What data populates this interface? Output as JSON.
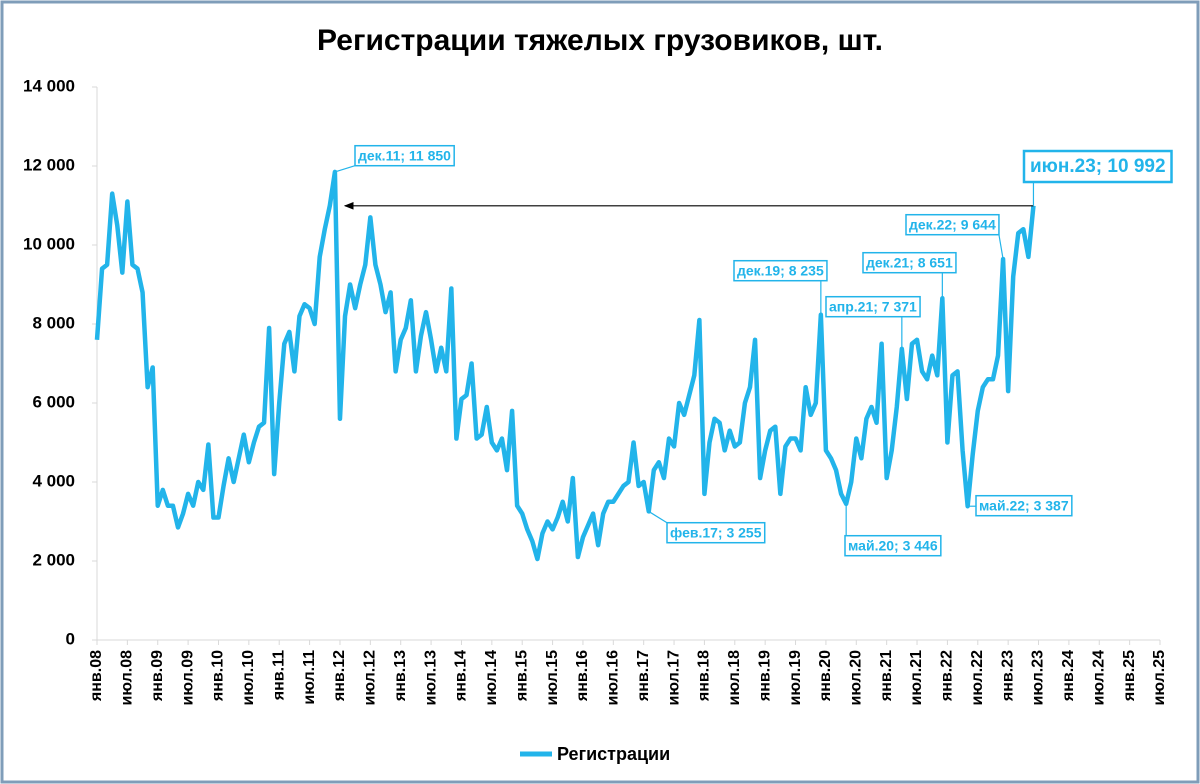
{
  "chart_data": {
    "type": "line",
    "title": "Регистрации тяжелых грузовиков, шт.",
    "categories": [
      "янв.08",
      null,
      null,
      null,
      null,
      null,
      "июл.08",
      null,
      null,
      null,
      null,
      null,
      "янв.09",
      null,
      null,
      null,
      null,
      null,
      "июл.09",
      null,
      null,
      null,
      null,
      null,
      "янв.10",
      null,
      null,
      null,
      null,
      null,
      "июл.10",
      null,
      null,
      null,
      null,
      null,
      "янв.11",
      null,
      null,
      null,
      null,
      null,
      "июл.11",
      null,
      null,
      null,
      null,
      null,
      "янв.12",
      null,
      null,
      null,
      null,
      null,
      "июл.12",
      null,
      null,
      null,
      null,
      null,
      "янв.13",
      null,
      null,
      null,
      null,
      null,
      "июл.13",
      null,
      null,
      null,
      null,
      null,
      "янв.14",
      null,
      null,
      null,
      null,
      null,
      "июл.14",
      null,
      null,
      null,
      null,
      null,
      "янв.15",
      null,
      null,
      null,
      null,
      null,
      "июл.15",
      null,
      null,
      null,
      null,
      null,
      "янв.16",
      null,
      null,
      null,
      null,
      null,
      "июл.16",
      null,
      null,
      null,
      null,
      null,
      "янв.17",
      null,
      null,
      null,
      null,
      null,
      "июл.17",
      null,
      null,
      null,
      null,
      null,
      "янв.18",
      null,
      null,
      null,
      null,
      null,
      "июл.18",
      null,
      null,
      null,
      null,
      null,
      "янв.19",
      null,
      null,
      null,
      null,
      null,
      "июл.19",
      null,
      null,
      null,
      null,
      null,
      "янв.20",
      null,
      null,
      null,
      null,
      null,
      "июл.20",
      null,
      null,
      null,
      null,
      null,
      "янв.21",
      null,
      null,
      null,
      null,
      null,
      "июл.21",
      null,
      null,
      null,
      null,
      null,
      "янв.22",
      null,
      null,
      null,
      null,
      null,
      "июл.22",
      null,
      null,
      null,
      null,
      null,
      "янв.23",
      null,
      null,
      null,
      null,
      null,
      "июл.23",
      null,
      null,
      null,
      null,
      null,
      "янв.24",
      null,
      null,
      null,
      null,
      null,
      "июл.24",
      null,
      null,
      null,
      null,
      null,
      "янв.25",
      null,
      null,
      null,
      null,
      null,
      "июл.25"
    ],
    "series": [
      {
        "name": "Регистрации",
        "color": "#22b4ea",
        "values": [
          7600,
          9400,
          9500,
          11300,
          10500,
          9300,
          11100,
          9500,
          9400,
          8800,
          6400,
          6900,
          3400,
          3800,
          3400,
          3400,
          2850,
          3200,
          3700,
          3400,
          4000,
          3800,
          4950,
          3100,
          3100,
          3900,
          4600,
          4000,
          4600,
          5200,
          4500,
          5000,
          5400,
          5500,
          7900,
          4200,
          6000,
          7500,
          7800,
          6800,
          8200,
          8500,
          8400,
          8000,
          9700,
          10400,
          11000,
          11850,
          5600,
          8200,
          9000,
          8400,
          9000,
          9500,
          10700,
          9500,
          9000,
          8300,
          8800,
          6800,
          7600,
          7900,
          8600,
          6800,
          7700,
          8300,
          7600,
          6800,
          7400,
          6800,
          8900,
          5100,
          6100,
          6200,
          7000,
          5100,
          5200,
          5900,
          5000,
          4800,
          5100,
          4300,
          5800,
          3400,
          3200,
          2800,
          2500,
          2050,
          2700,
          3000,
          2800,
          3100,
          3500,
          3000,
          4100,
          2100,
          2600,
          2900,
          3200,
          2400,
          3200,
          3500,
          3500,
          3700,
          3900,
          4000,
          5000,
          3900,
          4000,
          3255,
          4300,
          4500,
          4100,
          5100,
          4900,
          6000,
          5700,
          6200,
          6700,
          8100,
          3700,
          5000,
          5600,
          5500,
          4800,
          5300,
          4900,
          5000,
          6000,
          6400,
          7600,
          4100,
          4800,
          5300,
          5400,
          3700,
          4900,
          5100,
          5100,
          4800,
          6400,
          5700,
          6000,
          8235,
          4800,
          4600,
          4300,
          3700,
          3446,
          4000,
          5100,
          4600,
          5600,
          5900,
          5500,
          7500,
          4100,
          4800,
          5900,
          7371,
          6100,
          7500,
          7600,
          6800,
          6600,
          7200,
          6700,
          8651,
          5000,
          6700,
          6800,
          4800,
          3387,
          4700,
          5800,
          6400,
          6600,
          6600,
          7200,
          9644,
          6300,
          9200,
          10300,
          10400,
          9700,
          10992,
          null,
          null,
          null,
          null,
          null,
          null,
          null,
          null,
          null,
          null,
          null,
          null,
          null,
          null,
          null,
          null,
          null,
          null,
          null,
          null,
          null,
          null,
          null,
          null,
          null
        ],
        "value_labels": [
          null,
          null,
          null,
          null,
          null,
          null,
          null,
          null,
          null,
          null,
          null,
          null,
          null,
          null,
          null,
          null,
          null,
          null,
          null,
          null,
          null,
          null,
          null,
          null,
          null,
          null,
          null,
          null,
          null,
          null,
          null,
          null,
          null,
          null,
          null,
          null,
          null,
          null,
          null,
          null,
          null,
          null,
          null,
          null,
          null,
          null,
          null,
          "дек.11; 11 850",
          null,
          null,
          null,
          null,
          null,
          null,
          null,
          null,
          null,
          null,
          null,
          null,
          null,
          null,
          null,
          null,
          null,
          null,
          null,
          null,
          null,
          null,
          null,
          null,
          null,
          null,
          null,
          null,
          null,
          null,
          null,
          null,
          null,
          null,
          null,
          null,
          null,
          null,
          null,
          null,
          null,
          null,
          null,
          null,
          null,
          null,
          null,
          null,
          null,
          null,
          null,
          null,
          null,
          null,
          null,
          null,
          null,
          null,
          null,
          null,
          null,
          "фев.17; 3 255",
          null,
          null,
          null,
          null,
          null,
          null,
          null,
          null,
          null,
          null,
          null,
          null,
          null,
          null,
          null,
          null,
          null,
          null,
          null,
          null,
          null,
          null,
          null,
          null,
          null,
          null,
          null,
          null,
          null,
          null,
          null,
          null,
          null,
          "дек.19; 8 235",
          null,
          null,
          null,
          null,
          "май.20; 3 446",
          null,
          null,
          null,
          null,
          null,
          null,
          null,
          null,
          null,
          null,
          "апр.21; 7 371",
          null,
          null,
          null,
          null,
          null,
          null,
          null,
          "дек.21; 8 651",
          null,
          null,
          null,
          null,
          "май.22; 3 387",
          null,
          null,
          null,
          null,
          null,
          null,
          "дек.22; 9 644",
          null,
          null,
          null,
          null,
          null,
          "июн.23; 10 992",
          null,
          null,
          null,
          null,
          null,
          null,
          null,
          null,
          null,
          null,
          null,
          null,
          null,
          null,
          null,
          null,
          null,
          null,
          null,
          null,
          null,
          null,
          null,
          null,
          null
        ]
      }
    ],
    "ylim": [
      0,
      14000
    ],
    "yticks": [
      0,
      {
        "value": 2000,
        "label": "2 000"
      },
      {
        "value": 4000,
        "label": "4 000"
      },
      {
        "value": 6000,
        "label": "6 000"
      },
      {
        "value": 8000,
        "label": "8 000"
      },
      {
        "value": 10000,
        "label": "10 000"
      },
      {
        "value": 12000,
        "label": "12 000"
      },
      {
        "value": 14000,
        "label": "14 000"
      }
    ],
    "grid": false,
    "legend": "bottom"
  }
}
